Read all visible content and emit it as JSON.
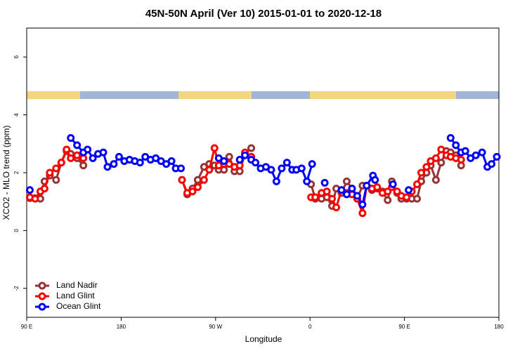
{
  "chart_data": {
    "type": "line",
    "title": "45N-50N April (Ver 10)   2015-01-01 to 2020-12-18",
    "xlabel": "Longitude",
    "ylabel": "XCO2 - MLO trend (ppm)",
    "xlim": [
      90,
      540
    ],
    "xticks": [
      {
        "value": 90,
        "label": "90 E"
      },
      180,
      {
        "value": 270,
        "label": "90 W"
      },
      {
        "value": 360,
        "label": "0"
      },
      {
        "value": 450,
        "label": "90 E"
      },
      {
        "value": 540,
        "label": "180"
      }
    ],
    "ylim": [
      -3,
      7
    ],
    "yticks": [
      -2,
      0,
      2,
      4,
      6
    ],
    "legend": "lower left",
    "series": [
      {
        "name": "Land Nadir",
        "color": "#993333",
        "x": [
          93,
          98,
          103,
          107,
          112,
          118,
          123,
          128,
          132,
          138,
          144,
          null,
          238,
          243,
          248,
          253,
          259,
          264,
          269,
          273,
          278,
          283,
          288,
          293,
          298,
          304,
          null,
          361,
          365,
          371,
          376,
          381,
          385,
          390,
          395,
          400,
          405,
          410,
          414,
          419,
          424,
          429,
          434,
          438,
          443,
          447,
          452,
          457,
          462,
          466,
          471,
          475,
          480,
          485,
          490,
          494,
          499,
          504
        ],
        "values": [
          1.12,
          1.12,
          1.1,
          1.7,
          1.9,
          1.75,
          2.35,
          2.75,
          2.65,
          2.5,
          2.25,
          null,
          1.75,
          1.25,
          1.45,
          1.75,
          2.2,
          2.3,
          2.25,
          2.1,
          2.1,
          2.55,
          2.05,
          2.05,
          2.65,
          2.85,
          null,
          1.6,
          1.1,
          1.1,
          1.15,
          0.85,
          1.45,
          1.3,
          1.7,
          1.45,
          1.1,
          1.55,
          1.55,
          1.4,
          1.45,
          1.35,
          1.05,
          1.7,
          1.3,
          1.1,
          1.1,
          1.1,
          1.1,
          1.7,
          2.0,
          2.25,
          1.75,
          2.35,
          2.75,
          2.7,
          2.6,
          2.25
        ]
      },
      {
        "name": "Land Glint",
        "color": "#ff0000",
        "x": [
          93,
          98,
          103,
          107,
          112,
          118,
          123,
          128,
          132,
          138,
          144,
          null,
          238,
          243,
          248,
          253,
          259,
          264,
          269,
          273,
          278,
          283,
          288,
          293,
          298,
          304,
          null,
          361,
          365,
          371,
          376,
          381,
          385,
          390,
          395,
          400,
          405,
          410,
          414,
          419,
          424,
          429,
          434,
          438,
          443,
          447,
          452,
          457,
          462,
          466,
          471,
          475,
          480,
          485,
          490,
          494,
          499,
          504
        ],
        "values": [
          1.15,
          1.1,
          1.35,
          1.45,
          2.0,
          2.15,
          2.35,
          2.8,
          2.5,
          2.6,
          2.5,
          null,
          1.75,
          1.3,
          1.35,
          1.5,
          1.75,
          2.1,
          2.85,
          2.25,
          2.3,
          2.3,
          2.2,
          2.25,
          2.7,
          2.55,
          null,
          1.15,
          1.15,
          1.3,
          1.35,
          1.1,
          0.8,
          1.4,
          1.3,
          1.25,
          1.1,
          0.6,
          1.55,
          1.45,
          1.5,
          1.3,
          1.35,
          1.5,
          1.35,
          1.2,
          1.15,
          1.35,
          1.6,
          2.0,
          2.2,
          2.4,
          2.5,
          2.8,
          2.6,
          2.55,
          2.5,
          2.45
        ]
      },
      {
        "name": "Ocean Glint",
        "color": "#0000ff",
        "x": [
          93,
          null,
          132,
          138,
          144,
          148,
          153,
          158,
          163,
          167,
          173,
          178,
          183,
          188,
          193,
          198,
          203,
          208,
          213,
          218,
          223,
          228,
          232,
          237,
          null,
          273,
          278,
          null,
          293,
          298,
          304,
          308,
          313,
          318,
          323,
          328,
          333,
          338,
          343,
          347,
          352,
          357,
          362,
          null,
          374,
          null,
          390,
          395,
          400,
          405,
          410,
          414,
          420,
          422,
          null,
          439,
          null,
          454,
          null,
          494,
          499,
          504,
          508,
          513,
          518,
          524,
          529,
          533,
          538
        ],
        "values": [
          1.4,
          null,
          3.2,
          2.95,
          2.7,
          2.8,
          2.5,
          2.65,
          2.7,
          2.2,
          2.3,
          2.55,
          2.4,
          2.45,
          2.4,
          2.35,
          2.55,
          2.45,
          2.5,
          2.4,
          2.3,
          2.4,
          2.15,
          2.15,
          null,
          2.5,
          2.4,
          null,
          2.45,
          2.6,
          2.45,
          2.35,
          2.15,
          2.2,
          2.1,
          1.7,
          2.15,
          2.35,
          2.1,
          2.1,
          2.15,
          1.7,
          2.3,
          null,
          1.65,
          null,
          1.4,
          1.25,
          1.45,
          1.2,
          0.9,
          1.55,
          1.9,
          1.75,
          null,
          1.6,
          null,
          1.4,
          null,
          3.2,
          2.95,
          2.7,
          2.75,
          2.5,
          2.6,
          2.7,
          2.2,
          2.3,
          2.55
        ]
      }
    ]
  }
}
